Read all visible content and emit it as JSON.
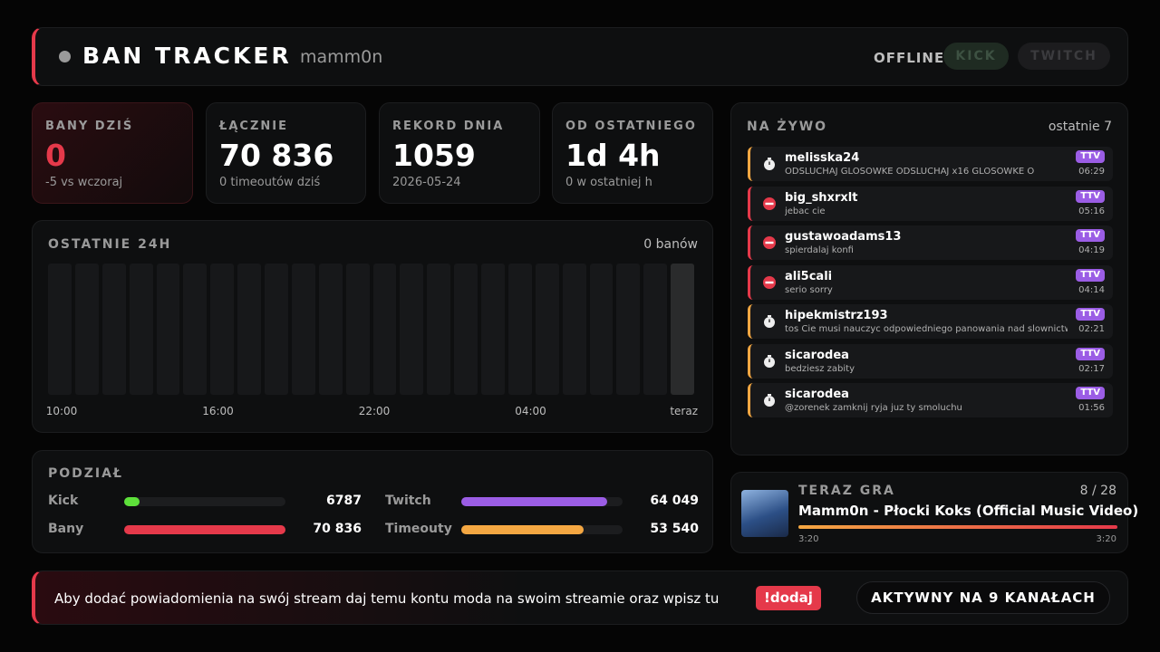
{
  "header": {
    "title": "BAN TRACKER",
    "channel": "mamm0n",
    "status": "OFFLINE",
    "platforms": [
      "KICK",
      "TWITCH"
    ]
  },
  "stats": [
    {
      "label": "BANY DZIŚ",
      "value": "0",
      "note": "-5 vs wczoraj"
    },
    {
      "label": "ŁĄCZNIE",
      "value": {
        "value": 70836,
        "label": "70 836"
      },
      "note": "0 timeoutów dziś"
    },
    {
      "label": "REKORD DNIA",
      "value": "1059",
      "note": "2026-05-24"
    },
    {
      "label": "OD OSTATNIEGO",
      "value": "1d 4h",
      "note": "0 w ostatniej h"
    }
  ],
  "chart": {
    "title": "OSTATNIE 24H",
    "summary": "0 banów",
    "values": [
      0,
      0,
      0,
      0,
      0,
      0,
      0,
      0,
      0,
      0,
      0,
      0,
      0,
      0,
      0,
      0,
      0,
      0,
      0,
      0,
      0,
      0,
      0,
      0
    ],
    "color": "#e5394a",
    "xlabels": [
      "10:00",
      "16:00",
      "22:00",
      "04:00",
      "teraz"
    ]
  },
  "breakdown": {
    "title": "PODZIAŁ",
    "rows": [
      {
        "name": "Kick",
        "value": 6787,
        "label": "6787",
        "color": "#5de03a"
      },
      {
        "name": "Twitch",
        "value": 64049,
        "label": "64 049",
        "color": "#9b5de5"
      },
      {
        "name": "Bany",
        "value": 70836,
        "label": "70 836",
        "color": "#e5394a"
      },
      {
        "name": "Timeouty",
        "value": 53540,
        "label": "53 540",
        "color": "#f4a742"
      }
    ]
  },
  "live": {
    "title": "NA ŻYWO",
    "subtitle": "ostatnie 7",
    "items": [
      {
        "user": "melisska24",
        "message": "ODSLUCHAJ GLOSOWKE ODSLUCHAJ x16 GLOSOWKE O",
        "badge": "TTV",
        "time": "06:29",
        "kind": "timeout"
      },
      {
        "user": "big_shxrxlt",
        "message": "jebac cie",
        "badge": "TTV",
        "time": "05:16",
        "kind": "ban"
      },
      {
        "user": "gustawoadams13",
        "message": "spierdalaj konfi",
        "badge": "TTV",
        "time": "04:19",
        "kind": "ban"
      },
      {
        "user": "ali5cali",
        "message": "serio sorry",
        "badge": "TTV",
        "time": "04:14",
        "kind": "ban"
      },
      {
        "user": "hipekmistrz193",
        "message": "tos Cie musi nauczyc odpowiedniego panowania nad slownictwem",
        "badge": "TTV",
        "time": "02:21",
        "kind": "timeout"
      },
      {
        "user": "sicarodea",
        "message": "bedziesz zabity",
        "badge": "TTV",
        "time": "02:17",
        "kind": "timeout"
      },
      {
        "user": "sicarodea",
        "message": "@zorenek zamknij ryja juz ty smoluchu",
        "badge": "TTV",
        "time": "01:56",
        "kind": "timeout"
      }
    ]
  },
  "now_playing": {
    "title": "TERAZ GRA",
    "position": "8 / 28",
    "track": "Mamm0n - Płocki Koks (Official Music Video)",
    "elapsed": "3:20",
    "duration": "3:20"
  },
  "footer": {
    "message": "Aby dodać powiadomienia na swój stream daj temu kontu moda na swoim streamie oraz wpisz tu",
    "command": "!dodaj",
    "status": "AKTYWNY NA 9 KANAŁACH"
  }
}
